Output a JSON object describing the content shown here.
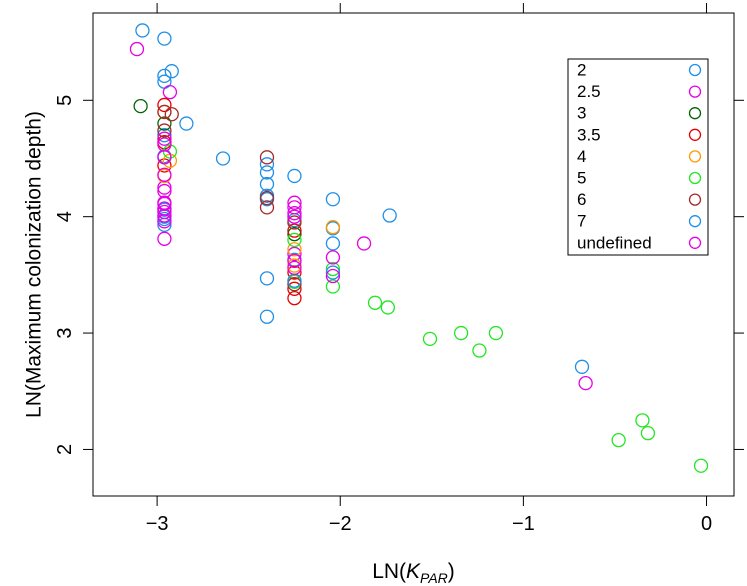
{
  "chart_data": {
    "type": "scatter",
    "xlabel": {
      "main": "LN(",
      "italic": "K",
      "sub": "PAR",
      "close": ")"
    },
    "ylabel": "LN(Maximum colonization depth)",
    "xlim": [
      -3.35,
      0.15
    ],
    "ylim": [
      1.6,
      5.75
    ],
    "x_ticks": [
      -3,
      -2,
      -1,
      0
    ],
    "x_tick_labels": [
      "−3",
      "−2",
      "−1",
      "0"
    ],
    "y_ticks": [
      2,
      3,
      4,
      5
    ],
    "y_tick_labels": [
      "2",
      "3",
      "4",
      "5"
    ],
    "legend_position": "top-right",
    "series": [
      {
        "name": "2",
        "color": "#1f8fe8",
        "points": [
          [
            -3.08,
            5.6
          ],
          [
            -2.96,
            5.53
          ],
          [
            -2.96,
            5.21
          ],
          [
            -2.96,
            5.16
          ],
          [
            -2.92,
            5.25
          ],
          [
            -2.84,
            4.8
          ],
          [
            -2.64,
            4.5
          ],
          [
            -2.4,
            4.45
          ],
          [
            -2.4,
            4.38
          ],
          [
            -2.4,
            4.28
          ],
          [
            -2.4,
            4.18
          ],
          [
            -2.4,
            4.15
          ],
          [
            -2.4,
            3.47
          ],
          [
            -2.4,
            3.14
          ],
          [
            -2.25,
            4.35
          ],
          [
            -2.04,
            4.15
          ],
          [
            -2.04,
            3.9
          ],
          [
            -2.04,
            3.77
          ],
          [
            -1.73,
            4.01
          ],
          [
            -0.68,
            2.71
          ],
          [
            -2.96,
            4.7
          ],
          [
            -2.96,
            4.52
          ],
          [
            -2.96,
            4.06
          ],
          [
            -2.96,
            3.98
          ],
          [
            -2.96,
            3.93
          ],
          [
            -2.25,
            3.97
          ],
          [
            -2.25,
            3.63
          ]
        ]
      },
      {
        "name": "2.5",
        "color": "#e600e6",
        "points": [
          [
            -3.11,
            5.44
          ],
          [
            -2.93,
            5.07
          ],
          [
            -2.96,
            4.25
          ],
          [
            -2.96,
            4.12
          ],
          [
            -2.25,
            4.12
          ],
          [
            -2.25,
            3.68
          ]
        ]
      },
      {
        "name": "3",
        "color": "#006400",
        "points": [
          [
            -3.09,
            4.95
          ],
          [
            -2.96,
            4.8
          ],
          [
            -2.25,
            3.85
          ]
        ]
      },
      {
        "name": "3.5",
        "color": "#e60000",
        "points": [
          [
            -2.96,
            4.96
          ],
          [
            -2.96,
            4.64
          ],
          [
            -2.96,
            4.44
          ],
          [
            -2.25,
            3.88
          ],
          [
            -2.25,
            3.52
          ],
          [
            -2.25,
            3.38
          ],
          [
            -2.25,
            3.3
          ]
        ]
      },
      {
        "name": "4",
        "color": "#ff9900",
        "points": [
          [
            -2.96,
            4.9
          ],
          [
            -2.96,
            4.35
          ],
          [
            -2.93,
            4.48
          ],
          [
            -2.25,
            3.72
          ],
          [
            -2.25,
            3.58
          ],
          [
            -2.04,
            3.91
          ],
          [
            -2.25,
            3.95
          ]
        ]
      },
      {
        "name": "5",
        "color": "#22e622",
        "points": [
          [
            -2.93,
            4.56
          ],
          [
            -2.25,
            3.8
          ],
          [
            -2.25,
            3.44
          ],
          [
            -2.04,
            3.55
          ],
          [
            -2.04,
            3.4
          ],
          [
            -1.81,
            3.26
          ],
          [
            -1.74,
            3.22
          ],
          [
            -1.51,
            2.95
          ],
          [
            -1.34,
            3.0
          ],
          [
            -1.24,
            2.85
          ],
          [
            -1.15,
            3.0
          ],
          [
            -0.48,
            2.08
          ],
          [
            -0.35,
            2.25
          ],
          [
            -0.32,
            2.14
          ],
          [
            -0.03,
            1.86
          ]
        ]
      },
      {
        "name": "6",
        "color": "#a52a2a",
        "points": [
          [
            -2.96,
            4.9
          ],
          [
            -2.92,
            4.88
          ],
          [
            -2.96,
            4.74
          ],
          [
            -2.4,
            4.51
          ],
          [
            -2.4,
            4.16
          ],
          [
            -2.4,
            4.08
          ],
          [
            -2.25,
            3.95
          ],
          [
            -2.25,
            3.42
          ]
        ]
      },
      {
        "name": "7",
        "color": "#1f8fe8",
        "points": [
          [
            -2.96,
            4.0
          ],
          [
            -2.25,
            3.45
          ],
          [
            -2.04,
            3.52
          ]
        ]
      },
      {
        "name": "undefined",
        "color": "#e600e6",
        "points": [
          [
            -2.96,
            4.67
          ],
          [
            -2.96,
            4.62
          ],
          [
            -2.96,
            4.51
          ],
          [
            -2.96,
            4.36
          ],
          [
            -2.96,
            4.22
          ],
          [
            -2.96,
            4.11
          ],
          [
            -2.96,
            4.07
          ],
          [
            -2.96,
            4.04
          ],
          [
            -2.96,
            4.01
          ],
          [
            -2.96,
            3.96
          ],
          [
            -2.96,
            3.81
          ],
          [
            -2.25,
            4.08
          ],
          [
            -2.25,
            4.03
          ],
          [
            -2.25,
            4.0
          ],
          [
            -2.25,
            3.62
          ],
          [
            -2.25,
            3.56
          ],
          [
            -2.04,
            3.65
          ],
          [
            -2.04,
            3.49
          ],
          [
            -1.87,
            3.77
          ],
          [
            -0.66,
            2.57
          ]
        ]
      }
    ]
  }
}
